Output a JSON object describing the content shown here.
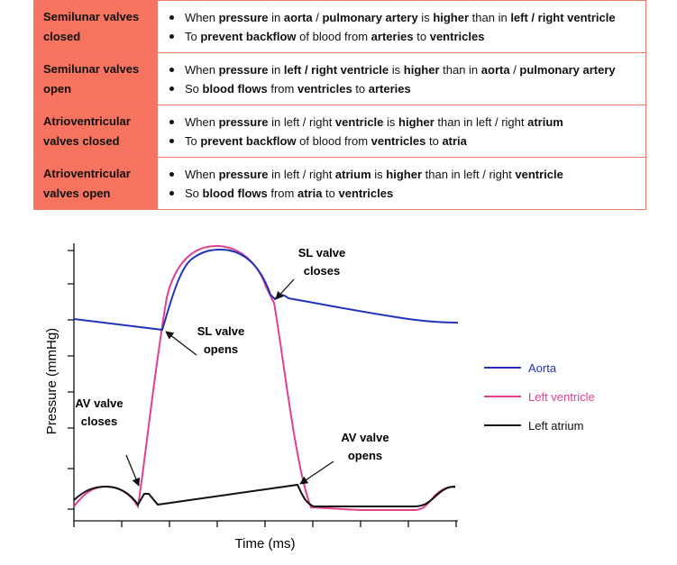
{
  "table": {
    "rows": [
      {
        "label": "Semilunar valves closed",
        "bullets": [
          [
            {
              "text": "When "
            },
            {
              "text": "pressure",
              "bold": true
            },
            {
              "text": " in "
            },
            {
              "text": "aorta",
              "bold": true
            },
            {
              "text": " / "
            },
            {
              "text": "pulmonary artery",
              "bold": true
            },
            {
              "text": " is "
            },
            {
              "text": "higher",
              "bold": true
            },
            {
              "text": " than in "
            },
            {
              "text": "left / right ventricle",
              "bold": true
            }
          ],
          [
            {
              "text": "To "
            },
            {
              "text": "prevent backflow",
              "bold": true
            },
            {
              "text": " of blood from "
            },
            {
              "text": "arteries",
              "bold": true
            },
            {
              "text": " to "
            },
            {
              "text": "ventricles",
              "bold": true
            }
          ]
        ]
      },
      {
        "label": "Semilunar valves open",
        "bullets": [
          [
            {
              "text": "When "
            },
            {
              "text": "pressure",
              "bold": true
            },
            {
              "text": " in "
            },
            {
              "text": "left / right ventricle",
              "bold": true
            },
            {
              "text": " is "
            },
            {
              "text": "higher",
              "bold": true
            },
            {
              "text": " than in "
            },
            {
              "text": "aorta",
              "bold": true
            },
            {
              "text": " / "
            },
            {
              "text": "pulmonary artery",
              "bold": true
            }
          ],
          [
            {
              "text": "So "
            },
            {
              "text": "blood flows",
              "bold": true
            },
            {
              "text": " from "
            },
            {
              "text": "ventricles",
              "bold": true
            },
            {
              "text": " to "
            },
            {
              "text": "arteries",
              "bold": true
            }
          ]
        ]
      },
      {
        "label": "Atrioventricular valves closed",
        "bullets": [
          [
            {
              "text": "When "
            },
            {
              "text": "pressure",
              "bold": true
            },
            {
              "text": " in left / right "
            },
            {
              "text": "ventricle",
              "bold": true
            },
            {
              "text": " is "
            },
            {
              "text": "higher",
              "bold": true
            },
            {
              "text": " than in left / right "
            },
            {
              "text": "atrium",
              "bold": true
            }
          ],
          [
            {
              "text": "To "
            },
            {
              "text": "prevent backflow",
              "bold": true
            },
            {
              "text": " of blood from "
            },
            {
              "text": "ventricles",
              "bold": true
            },
            {
              "text": " to "
            },
            {
              "text": "atria",
              "bold": true
            }
          ]
        ]
      },
      {
        "label": "Atrioventricular valves open",
        "bullets": [
          [
            {
              "text": "When "
            },
            {
              "text": "pressure",
              "bold": true
            },
            {
              "text": " in left / right "
            },
            {
              "text": "atrium",
              "bold": true
            },
            {
              "text": " is "
            },
            {
              "text": "higher",
              "bold": true
            },
            {
              "text": " than in left / right "
            },
            {
              "text": "ventricle",
              "bold": true
            }
          ],
          [
            {
              "text": "So "
            },
            {
              "text": "blood flows",
              "bold": true
            },
            {
              "text": " from "
            },
            {
              "text": "atria",
              "bold": true
            },
            {
              "text": " to "
            },
            {
              "text": "ventricles",
              "bold": true
            }
          ]
        ]
      }
    ]
  },
  "diagram": {
    "y_label": "Pressure (mmHg)",
    "x_label": "Time (ms)",
    "series": [
      {
        "name": "Aorta",
        "color": "#2233bb"
      },
      {
        "name": "Left ventricle",
        "color": "#e0408f"
      },
      {
        "name": "Left atrium",
        "color": "#111111"
      }
    ],
    "annotations": [
      {
        "lines": [
          "AV valve",
          "closes"
        ]
      },
      {
        "lines": [
          "SL valve",
          "opens"
        ]
      },
      {
        "lines": [
          "SL valve",
          "closes"
        ]
      },
      {
        "lines": [
          "AV valve",
          "opens"
        ]
      }
    ]
  }
}
